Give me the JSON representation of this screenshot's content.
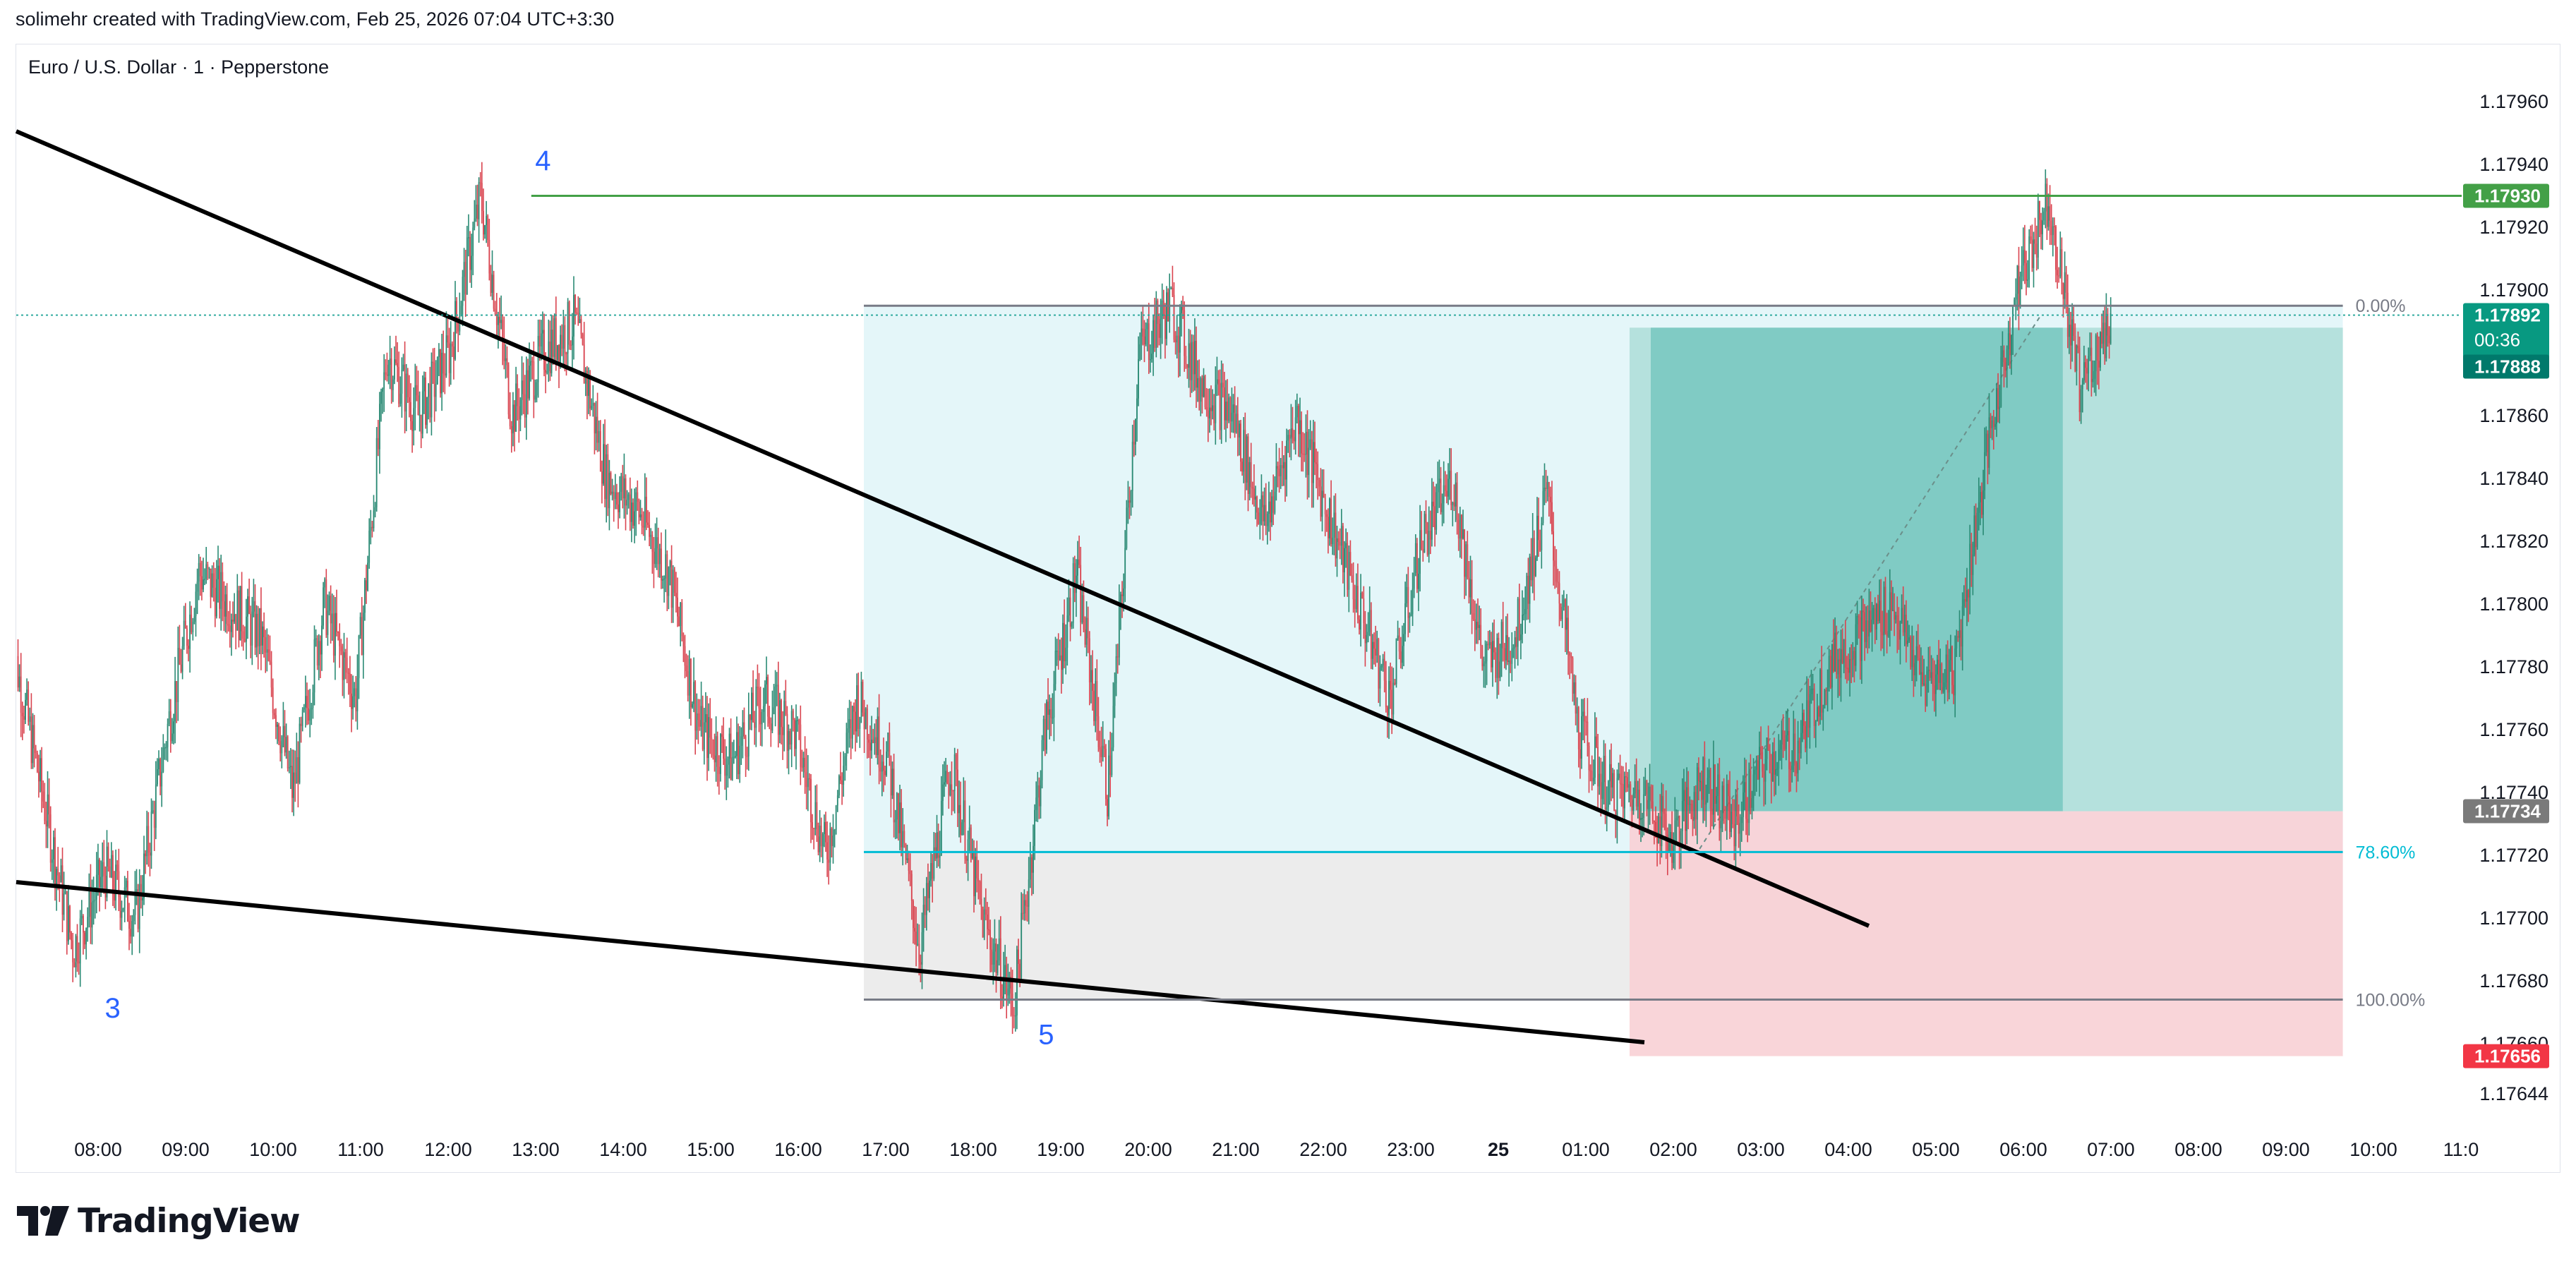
{
  "header": {
    "caption": "solimehr created with TradingView.com, Feb 25, 2026 07:04 UTC+3:30"
  },
  "symbol": {
    "title": "Euro / U.S. Dollar · 1 · Pepperstone"
  },
  "footer": {
    "logo_text": "TradingView"
  },
  "colors": {
    "up": "#26a69a",
    "down": "#ef5350",
    "candle_up": "#2a8a74",
    "candle_down": "#d9444f",
    "resistance_line": "#43a047",
    "fib_line": "#787b86",
    "fib_786": "#00bcd4",
    "target_zone": "#b2dfdb",
    "target_zone_dark": "#80cbc4",
    "stop_zone": "#f8d0d5",
    "fib_zone_top": "#e4f6f9",
    "fib_zone_bottom": "#ececec",
    "wave_label": "#2962ff"
  },
  "chart_data": {
    "type": "candlestick",
    "symbol": "EURUSD",
    "interval": "1",
    "y_axis": {
      "ticks": [
        "1.17960",
        "1.17940",
        "1.17920",
        "1.17900",
        "1.17880",
        "1.17860",
        "1.17840",
        "1.17820",
        "1.17800",
        "1.17780",
        "1.17760",
        "1.17740",
        "1.17720",
        "1.17700",
        "1.17680",
        "1.17660",
        "1.17644"
      ],
      "range": [
        1.1763,
        1.1797
      ]
    },
    "x_axis": {
      "ticks": [
        "08:00",
        "09:00",
        "10:00",
        "11:00",
        "12:00",
        "13:00",
        "14:00",
        "15:00",
        "16:00",
        "17:00",
        "18:00",
        "19:00",
        "20:00",
        "21:00",
        "22:00",
        "23:00",
        "25",
        "01:00",
        "02:00",
        "03:00",
        "04:00",
        "05:00",
        "06:00",
        "07:00",
        "08:00",
        "09:00",
        "10:00",
        "11:0"
      ]
    },
    "price_path": [
      [
        0,
        1.1779
      ],
      [
        1,
        1.1774
      ],
      [
        2,
        1.1769
      ],
      [
        3,
        1.17715
      ],
      [
        4,
        1.177
      ],
      [
        5,
        1.1776
      ],
      [
        6,
        1.1781
      ],
      [
        7,
        1.178
      ],
      [
        8,
        1.1779
      ],
      [
        9,
        1.1774
      ],
      [
        10,
        1.178
      ],
      [
        11,
        1.1777
      ],
      [
        12,
        1.1788
      ],
      [
        13,
        1.1786
      ],
      [
        14,
        1.1788
      ],
      [
        15,
        1.1793
      ],
      [
        16,
        1.1786
      ],
      [
        17,
        1.1788
      ],
      [
        18,
        1.1789
      ],
      [
        19,
        1.1784
      ],
      [
        20,
        1.1783
      ],
      [
        21,
        1.1781
      ],
      [
        22,
        1.1776
      ],
      [
        23,
        1.1775
      ],
      [
        24,
        1.1777
      ],
      [
        25,
        1.1776
      ],
      [
        26,
        1.1772
      ],
      [
        27,
        1.1777
      ],
      [
        28,
        1.1775
      ],
      [
        29,
        1.1769
      ],
      [
        30,
        1.1775
      ],
      [
        31,
        1.177
      ],
      [
        32,
        1.17672
      ],
      [
        33,
        1.1776
      ],
      [
        34,
        1.1781
      ],
      [
        35,
        1.1774
      ],
      [
        36,
        1.1788
      ],
      [
        37,
        1.17895
      ],
      [
        38,
        1.1787
      ],
      [
        39,
        1.1786
      ],
      [
        40,
        1.17825
      ],
      [
        41,
        1.1786
      ],
      [
        42,
        1.1783
      ],
      [
        43,
        1.178
      ],
      [
        44,
        1.1777
      ],
      [
        45,
        1.1782
      ],
      [
        46,
        1.1784
      ],
      [
        47,
        1.1778
      ],
      [
        48,
        1.1779
      ],
      [
        49,
        1.17835
      ],
      [
        50,
        1.1776
      ],
      [
        51,
        1.1774
      ],
      [
        52,
        1.1774
      ],
      [
        53,
        1.17725
      ],
      [
        54,
        1.17745
      ],
      [
        55,
        1.1773
      ],
      [
        56,
        1.1775
      ],
      [
        57,
        1.17755
      ],
      [
        58,
        1.1778
      ],
      [
        59,
        1.1779
      ],
      [
        60,
        1.178
      ],
      [
        61,
        1.17775
      ],
      [
        62,
        1.1778
      ],
      [
        63,
        1.17845
      ],
      [
        64,
        1.179
      ],
      [
        65,
        1.1793
      ],
      [
        66,
        1.1787
      ],
      [
        67,
        1.1789
      ]
    ],
    "trendlines": [
      {
        "name": "upper",
        "from": {
          "time": "07:00",
          "price": 1.17935
        },
        "to": {
          "time": "04:00",
          "price": 1.17697
        }
      },
      {
        "name": "lower",
        "from": {
          "time": "07:00",
          "price": 1.1771
        },
        "to": {
          "time": "01:40",
          "price": 1.17658
        }
      }
    ],
    "horizontal_lines": [
      {
        "name": "resistance",
        "price": 1.1793,
        "label": "1.17930"
      }
    ],
    "fibonacci": {
      "levels": [
        {
          "ratio": "0.00%",
          "price": 1.17895
        },
        {
          "ratio": "78.60%",
          "price": 1.17721
        },
        {
          "ratio": "100.00%",
          "price": 1.17674
        }
      ]
    },
    "position": {
      "type": "long",
      "entry": 1.17734,
      "target": 1.17888,
      "stop": 1.17656
    },
    "wave_labels": [
      {
        "label": "3",
        "time": "08:10",
        "price": 1.1768
      },
      {
        "label": "4",
        "time": "13:05",
        "price": 1.17935
      },
      {
        "label": "5",
        "time": "18:50",
        "price": 1.17672
      }
    ],
    "price_tags": {
      "resistance": "1.17930",
      "last_price": "1.17892",
      "countdown": "00:36",
      "target": "1.17888",
      "entry": "1.17734",
      "stop": "1.17656"
    }
  }
}
